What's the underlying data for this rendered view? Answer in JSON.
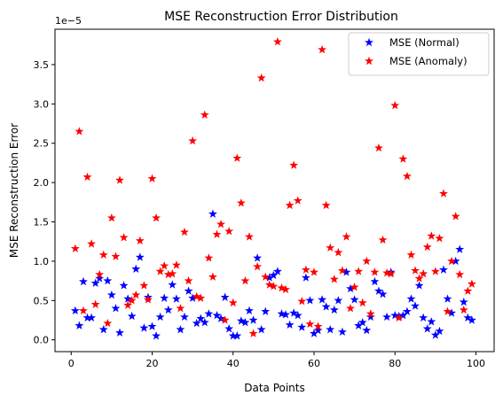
{
  "chart_data": {
    "type": "scatter",
    "title": "MSE Reconstruction Error Distribution",
    "xlabel": "Data Points",
    "ylabel": "MSE Reconstruction Error",
    "offset_label": "1e−5",
    "xlim": [
      -4,
      104.5
    ],
    "ylim": [
      -0.15,
      3.95
    ],
    "y_scale_exponent": -5,
    "xticks": [
      0,
      20,
      40,
      60,
      80,
      100
    ],
    "yticks": [
      0.0,
      0.5,
      1.0,
      1.5,
      2.0,
      2.5,
      3.0,
      3.5
    ],
    "ytick_labels": [
      "0.0",
      "0.5",
      "1.0",
      "1.5",
      "2.0",
      "2.5",
      "3.0",
      "3.5"
    ],
    "grid": false,
    "legend_position": "top-right",
    "series": [
      {
        "name": "MSE (Normal)",
        "color": "#0000ff",
        "marker": "star",
        "x": [
          1,
          2,
          3,
          4,
          5,
          6,
          7,
          8,
          9,
          10,
          11,
          12,
          13,
          14,
          15,
          16,
          17,
          18,
          19,
          20,
          21,
          22,
          23,
          24,
          25,
          26,
          27,
          28,
          29,
          30,
          31,
          32,
          33,
          34,
          35,
          36,
          37,
          38,
          39,
          40,
          41,
          42,
          43,
          44,
          45,
          46,
          47,
          48,
          49,
          50,
          51,
          52,
          53,
          54,
          55,
          56,
          57,
          58,
          59,
          60,
          61,
          62,
          63,
          64,
          65,
          66,
          67,
          68,
          69,
          70,
          71,
          72,
          73,
          74,
          75,
          76,
          77,
          78,
          79,
          80,
          81,
          82,
          83,
          84,
          85,
          86,
          87,
          88,
          89,
          90,
          91,
          92,
          93,
          94,
          95,
          96,
          97,
          98,
          99
        ],
        "y": [
          0.37,
          0.18,
          0.74,
          0.28,
          0.28,
          0.72,
          0.78,
          0.13,
          0.75,
          0.57,
          0.4,
          0.09,
          0.69,
          0.52,
          0.3,
          0.9,
          1.05,
          0.15,
          0.54,
          0.17,
          0.05,
          0.29,
          0.53,
          0.38,
          0.7,
          0.52,
          0.13,
          0.29,
          0.62,
          0.53,
          0.21,
          0.27,
          0.22,
          0.33,
          1.6,
          0.31,
          0.27,
          0.54,
          0.14,
          0.05,
          0.05,
          0.24,
          0.22,
          0.37,
          0.25,
          1.04,
          0.13,
          0.36,
          0.79,
          0.82,
          0.87,
          0.33,
          0.32,
          0.19,
          0.34,
          0.31,
          0.16,
          0.79,
          0.5,
          0.08,
          0.12,
          0.51,
          0.42,
          0.13,
          0.38,
          0.5,
          0.1,
          0.86,
          0.65,
          0.51,
          0.18,
          0.22,
          0.12,
          0.29,
          0.74,
          0.62,
          0.58,
          0.29,
          0.86,
          0.31,
          0.3,
          0.31,
          0.36,
          0.52,
          0.43,
          0.69,
          0.28,
          0.14,
          0.23,
          0.06,
          0.11,
          0.89,
          0.52,
          0.34,
          1.0,
          1.15,
          0.48,
          0.28,
          0.25
        ]
      },
      {
        "name": "MSE (Anomaly)",
        "color": "#ff0000",
        "marker": "star",
        "x": [
          1,
          2,
          3,
          4,
          5,
          6,
          7,
          8,
          9,
          10,
          11,
          12,
          13,
          14,
          15,
          16,
          17,
          18,
          19,
          20,
          21,
          22,
          23,
          24,
          25,
          26,
          27,
          28,
          29,
          30,
          31,
          32,
          33,
          34,
          35,
          36,
          37,
          38,
          39,
          40,
          41,
          42,
          43,
          44,
          45,
          46,
          47,
          48,
          49,
          50,
          51,
          52,
          53,
          54,
          55,
          56,
          57,
          58,
          59,
          60,
          61,
          62,
          63,
          64,
          65,
          66,
          67,
          68,
          69,
          70,
          71,
          72,
          73,
          74,
          75,
          76,
          77,
          78,
          79,
          80,
          81,
          82,
          83,
          84,
          85,
          86,
          87,
          88,
          89,
          90,
          91,
          92,
          93,
          94,
          95,
          96,
          97,
          98,
          99
        ],
        "y": [
          1.16,
          2.65,
          0.37,
          2.07,
          1.22,
          0.45,
          0.83,
          1.08,
          0.21,
          1.55,
          1.06,
          2.03,
          1.3,
          0.44,
          0.5,
          0.57,
          1.26,
          0.69,
          0.51,
          2.05,
          1.55,
          0.87,
          0.94,
          0.83,
          0.84,
          0.95,
          0.4,
          1.37,
          0.75,
          2.53,
          0.55,
          0.53,
          2.86,
          1.04,
          0.8,
          1.34,
          1.47,
          0.25,
          1.38,
          0.47,
          2.31,
          1.74,
          0.75,
          1.31,
          0.08,
          0.93,
          3.33,
          0.8,
          0.7,
          0.68,
          3.79,
          0.66,
          0.64,
          1.71,
          2.22,
          1.77,
          0.49,
          0.89,
          0.2,
          0.86,
          0.17,
          3.69,
          1.71,
          1.17,
          0.77,
          1.11,
          0.88,
          1.31,
          0.4,
          0.67,
          0.87,
          0.47,
          1.0,
          0.33,
          0.86,
          2.44,
          1.27,
          0.85,
          0.84,
          2.98,
          0.28,
          2.3,
          2.08,
          1.08,
          0.88,
          0.78,
          0.84,
          1.18,
          1.32,
          0.87,
          1.29,
          1.86,
          0.36,
          1.0,
          1.57,
          0.83,
          0.38,
          0.62,
          0.71
        ]
      }
    ]
  }
}
